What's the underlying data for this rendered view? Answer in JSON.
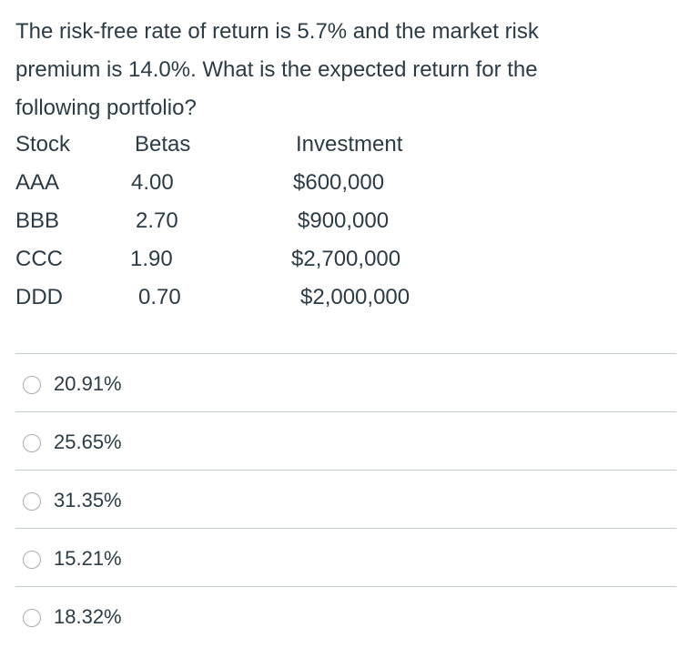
{
  "question": {
    "lines": [
      "The risk-free rate of return is 5.7% and the market risk",
      "premium is 14.0%. What is the expected return for the",
      "following portfolio?"
    ]
  },
  "table": {
    "headers": [
      "Stock",
      "Betas",
      "Investment"
    ],
    "rows": [
      [
        "AAA",
        "4.00",
        "$600,000"
      ],
      [
        "BBB",
        "2.70",
        "$900,000"
      ],
      [
        "CCC",
        "1.90",
        "$2,700,000"
      ],
      [
        "DDD",
        "0.70",
        "$2,000,000"
      ]
    ]
  },
  "answers": [
    {
      "label": "20.91%"
    },
    {
      "label": "25.65%"
    },
    {
      "label": "31.35%"
    },
    {
      "label": "15.21%"
    },
    {
      "label": "18.32%"
    }
  ]
}
